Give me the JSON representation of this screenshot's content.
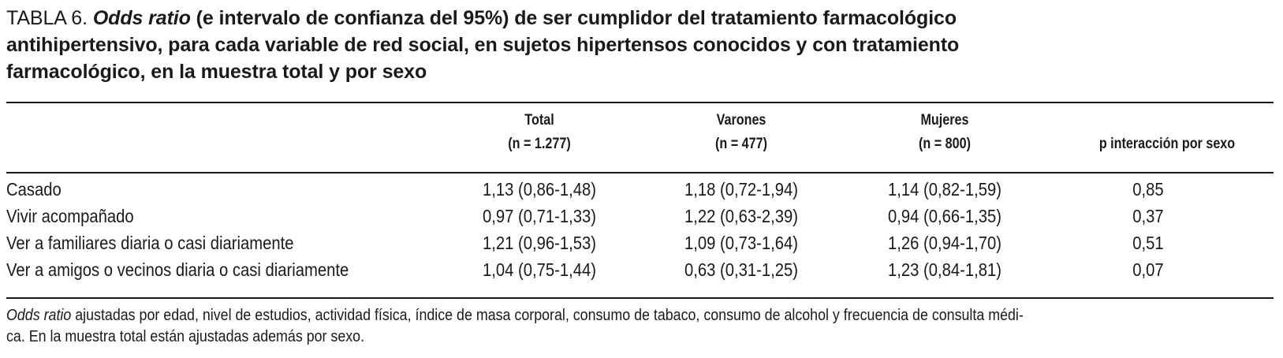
{
  "table": {
    "title_prefix": "TABLA 6. ",
    "title_italic": "Odds ratio",
    "title_rest_line1": " (e intervalo de confianza del 95%) de ser cumplidor del tratamiento farmacológico",
    "title_line2": "antihipertensivo, para cada variable de red social, en sujetos hipertensos conocidos y con tratamiento",
    "title_line3": "farmacológico, en la muestra total y por sexo",
    "columns": [
      {
        "label": "Total",
        "sub": "(n = 1.277)"
      },
      {
        "label": "Varones",
        "sub": "(n = 477)"
      },
      {
        "label": "Mujeres",
        "sub": "(n = 800)"
      },
      {
        "label": "p interacción por sexo",
        "sub": ""
      }
    ],
    "rows": [
      {
        "label": "Casado",
        "total": "1,13 (0,86-1,48)",
        "varones": "1,18 (0,72-1,94)",
        "mujeres": "1,14 (0,82-1,59)",
        "p": "0,85"
      },
      {
        "label": "Vivir acompañado",
        "total": "0,97 (0,71-1,33)",
        "varones": "1,22 (0,63-2,39)",
        "mujeres": "0,94 (0,66-1,35)",
        "p": "0,37"
      },
      {
        "label": "Ver a familiares diaria o casi diariamente",
        "total": "1,21 (0,96-1,53)",
        "varones": "1,09 (0,73-1,64)",
        "mujeres": "1,26 (0,94-1,70)",
        "p": "0,51"
      },
      {
        "label": "Ver a amigos o vecinos diaria o casi diariamente",
        "total": "1,04 (0,75-1,44)",
        "varones": "0,63 (0,31-1,25)",
        "mujeres": "1,23 (0,84-1,81)",
        "p": "0,07"
      }
    ],
    "footnote_italic": "Odds ratio",
    "footnote_line1_rest": " ajustadas por edad, nivel de estudios, actividad física, índice de masa corporal, consumo de tabaco, consumo de alcohol y frecuencia de consulta médi-",
    "footnote_line2": "ca. En la muestra total están ajustadas además por sexo."
  }
}
